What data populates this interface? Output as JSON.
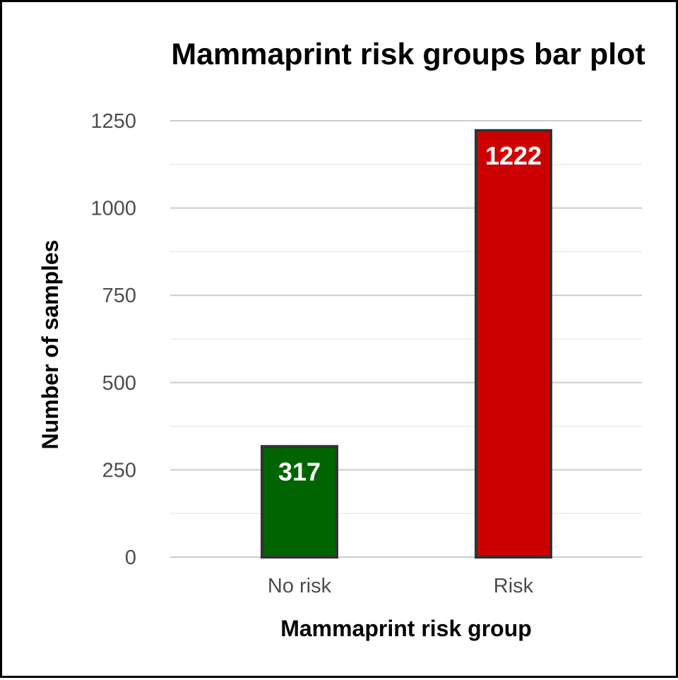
{
  "chart_data": {
    "type": "bar",
    "title": "Mammaprint risk groups bar plot",
    "xlabel": "Mammaprint risk group",
    "ylabel": "Number of samples",
    "categories": [
      "No risk",
      "Risk"
    ],
    "values": [
      317,
      1222
    ],
    "data_labels": [
      "317",
      "1222"
    ],
    "colors": [
      "#006400",
      "#cc0000"
    ],
    "bar_outline_color": "#333333",
    "ylim": [
      0,
      1280
    ],
    "yticks": [
      0,
      250,
      500,
      750,
      1000,
      1250
    ],
    "ytick_labels": [
      "0",
      "250",
      "500",
      "750",
      "1000",
      "1250"
    ],
    "grid": true,
    "legend": "none"
  }
}
